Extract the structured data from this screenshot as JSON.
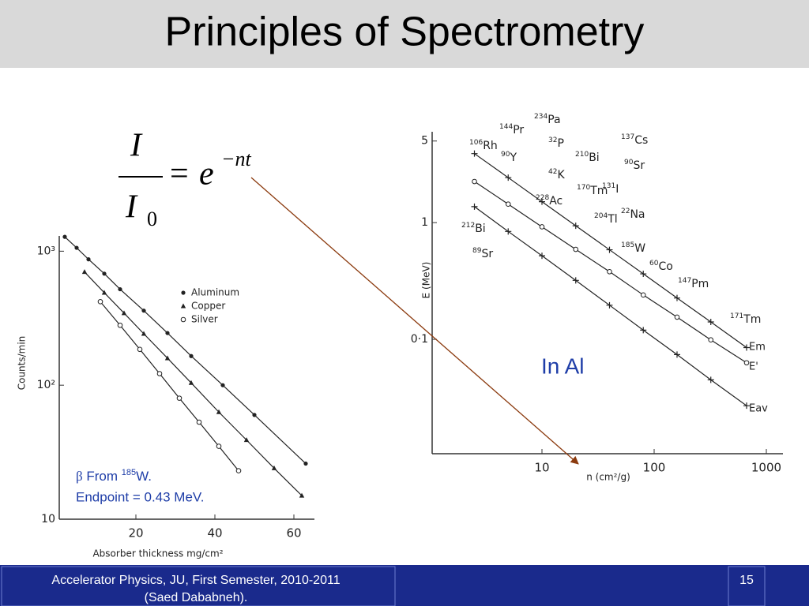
{
  "title": "Principles of Spectrometry",
  "equation": {
    "numerator": "I",
    "denominator": "I",
    "subscript": "0",
    "equals": "=",
    "base": "e",
    "exponent": "−nt"
  },
  "annotations": {
    "in_al": "In Al",
    "beta": "β",
    "from": " From ",
    "mass": "185",
    "element": "W.",
    "endpoint": "Endpoint = 0.43 MeV."
  },
  "footer": {
    "text_line1": "Accelerator Physics, JU, First Semester, 2010-2011",
    "text_line2": "(Saed Dababneh).",
    "page": "15"
  },
  "chart_data": [
    {
      "type": "scatter",
      "xscale": "linear",
      "yscale": "log",
      "x_label": "Absorber thickness mg/cm²",
      "y_label": "Counts/min",
      "xlim": [
        0,
        66
      ],
      "ylim": [
        10,
        1300
      ],
      "xticks": [
        20,
        40,
        60
      ],
      "yticks": [
        10,
        {
          "value": 100,
          "label": "10²"
        },
        {
          "value": 1000,
          "label": "10³"
        }
      ],
      "series": [
        {
          "name": "Aluminum",
          "marker": "dot",
          "color": "#222",
          "x": [
            2,
            5,
            8,
            12,
            16,
            22,
            28,
            34,
            42,
            50,
            63
          ],
          "values": [
            1280,
            1060,
            870,
            680,
            520,
            360,
            245,
            165,
            100,
            60,
            26
          ]
        },
        {
          "name": "Copper",
          "marker": "triangle",
          "color": "#222",
          "x": [
            7,
            12,
            17,
            22,
            28,
            34,
            41,
            48,
            55,
            62
          ],
          "values": [
            700,
            490,
            345,
            242,
            159,
            104,
            63,
            39,
            24,
            15
          ]
        },
        {
          "name": "Silver",
          "marker": "circle",
          "color": "#222",
          "x": [
            11,
            16,
            21,
            26,
            31,
            36,
            41,
            46
          ],
          "values": [
            420,
            280,
            185,
            122,
            80,
            53,
            35,
            23
          ]
        }
      ]
    },
    {
      "type": "scatter",
      "xscale": "log",
      "yscale": "log",
      "x_label": "n (cm²/g)",
      "y_label": "E (MeV)",
      "xlim": [
        1,
        1500
      ],
      "ylim": [
        0.01,
        6
      ],
      "xticks": [
        10,
        100,
        1000
      ],
      "yticks": [
        {
          "value": 0.1,
          "label": "0·1"
        },
        1,
        5
      ],
      "series": [
        {
          "name": "Em",
          "marker": "plus",
          "color": "#222",
          "x": [
            2.5,
            5,
            10,
            20,
            40,
            80,
            160,
            320,
            667
          ],
          "values": [
            3.9,
            2.43,
            1.51,
            0.94,
            0.585,
            0.364,
            0.226,
            0.141,
            0.085
          ]
        },
        {
          "name": "E'",
          "marker": "circle",
          "color": "#222",
          "x": [
            2.5,
            5,
            10,
            20,
            40,
            80,
            160,
            320,
            667
          ],
          "values": [
            2.25,
            1.44,
            0.92,
            0.59,
            0.38,
            0.24,
            0.155,
            0.099,
            0.063
          ]
        },
        {
          "name": "Eav",
          "marker": "plus",
          "color": "#222",
          "x": [
            2.5,
            5,
            10,
            20,
            40,
            80,
            160,
            320,
            667
          ],
          "values": [
            1.37,
            0.84,
            0.52,
            0.32,
            0.196,
            0.12,
            0.074,
            0.045,
            0.027
          ]
        }
      ],
      "isotopes": [
        {
          "mass": "144",
          "symbol": "Pr"
        },
        {
          "mass": "234",
          "symbol": "Pa"
        },
        {
          "mass": "106",
          "symbol": "Rh"
        },
        {
          "mass": "90",
          "symbol": "Y"
        },
        {
          "mass": "32",
          "symbol": "P"
        },
        {
          "mass": "210",
          "symbol": "Bi"
        },
        {
          "mass": "137",
          "symbol": "Cs"
        },
        {
          "mass": "90",
          "symbol": "Sr"
        },
        {
          "mass": "42",
          "symbol": "K"
        },
        {
          "mass": "170",
          "symbol": "Tm"
        },
        {
          "mass": "131",
          "symbol": "I"
        },
        {
          "mass": "228",
          "symbol": "Ac"
        },
        {
          "mass": "204",
          "symbol": "Tl"
        },
        {
          "mass": "22",
          "symbol": "Na"
        },
        {
          "mass": "212",
          "symbol": "Bi"
        },
        {
          "mass": "89",
          "symbol": "Sr"
        },
        {
          "mass": "185",
          "symbol": "W"
        },
        {
          "mass": "60",
          "symbol": "Co"
        },
        {
          "mass": "147",
          "symbol": "Pm"
        },
        {
          "mass": "171",
          "symbol": "Tm"
        }
      ]
    }
  ]
}
